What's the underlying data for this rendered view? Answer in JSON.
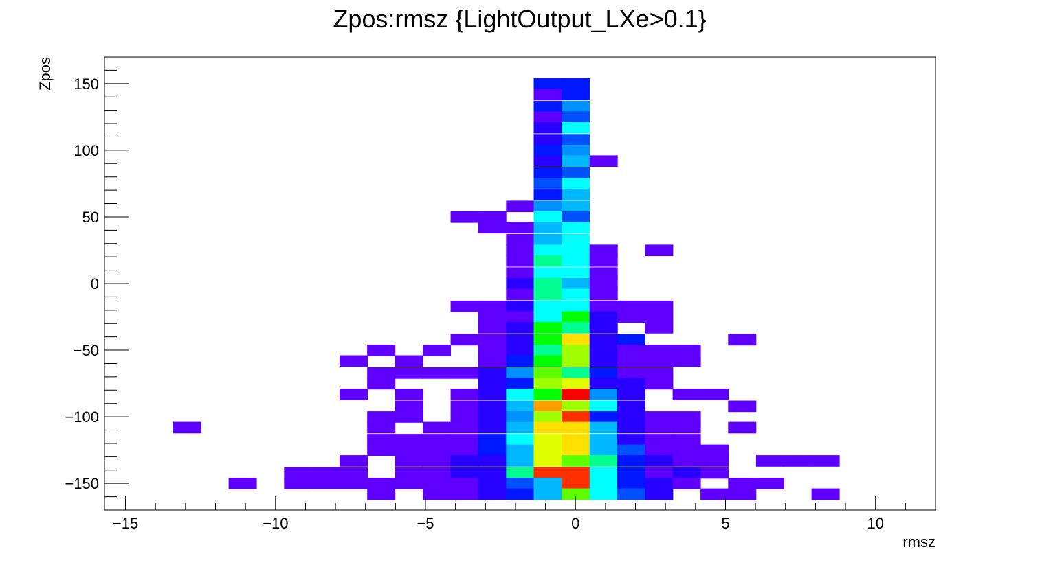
{
  "chart_data": {
    "type": "heatmap",
    "title": "Zpos:rmsz {LightOutput_LXe>0.1}",
    "xlabel": "rmsz",
    "ylabel": "Zpos",
    "xlim": [
      -15.7,
      12.0
    ],
    "ylim": [
      -170,
      170
    ],
    "x_ticks": [
      "−15",
      "−10",
      "−5",
      "0",
      "5",
      "10"
    ],
    "x_tick_values": [
      -15,
      -10,
      -5,
      0,
      5,
      10
    ],
    "y_ticks": [
      "150",
      "100",
      "50",
      "0",
      "−50",
      "−100",
      "−150"
    ],
    "y_tick_values": [
      150,
      100,
      50,
      0,
      -50,
      -100,
      -150
    ],
    "bin_width_x": 0.925,
    "bin_height_y": 8.3,
    "palette": [
      "#5f00ff",
      "#2800ff",
      "#0018ff",
      "#0050ff",
      "#0090ff",
      "#00b8ff",
      "#00ffff",
      "#00ff90",
      "#00ff00",
      "#60ff00",
      "#a0ff00",
      "#e0ff00",
      "#ffe000",
      "#ffa000",
      "#ff3000",
      "#ff0000"
    ],
    "cells": [
      [
        -0.93,
        150,
        2
      ],
      [
        0,
        150,
        2
      ],
      [
        -0.93,
        142,
        0
      ],
      [
        0,
        142,
        2
      ],
      [
        -0.93,
        133,
        2
      ],
      [
        0,
        133,
        4
      ],
      [
        -0.93,
        125,
        0
      ],
      [
        0,
        125,
        3
      ],
      [
        -0.93,
        117,
        1
      ],
      [
        0,
        117,
        6
      ],
      [
        -0.93,
        108,
        1
      ],
      [
        0,
        108,
        3
      ],
      [
        -0.93,
        100,
        2
      ],
      [
        0,
        100,
        4
      ],
      [
        -0.93,
        92,
        1
      ],
      [
        0,
        92,
        5
      ],
      [
        0.93,
        92,
        0
      ],
      [
        -0.93,
        83,
        2
      ],
      [
        0,
        83,
        3
      ],
      [
        -0.93,
        75,
        3
      ],
      [
        0,
        75,
        6
      ],
      [
        -0.93,
        67,
        2
      ],
      [
        0,
        67,
        5
      ],
      [
        -1.85,
        58,
        0
      ],
      [
        -0.93,
        58,
        4
      ],
      [
        0,
        58,
        5
      ],
      [
        -3.7,
        50,
        0
      ],
      [
        -2.78,
        50,
        0
      ],
      [
        -0.93,
        50,
        6
      ],
      [
        0,
        50,
        3
      ],
      [
        -2.78,
        42,
        0
      ],
      [
        -1.85,
        42,
        0
      ],
      [
        -0.93,
        42,
        5
      ],
      [
        0,
        42,
        6
      ],
      [
        -1.85,
        33,
        0
      ],
      [
        -0.93,
        33,
        5
      ],
      [
        0,
        33,
        6
      ],
      [
        -1.85,
        25,
        0
      ],
      [
        -0.93,
        25,
        6
      ],
      [
        0,
        25,
        6
      ],
      [
        0.93,
        25,
        0
      ],
      [
        2.78,
        25,
        0
      ],
      [
        -1.85,
        17,
        0
      ],
      [
        -0.93,
        17,
        7
      ],
      [
        0,
        17,
        6
      ],
      [
        0.93,
        17,
        0
      ],
      [
        -1.85,
        8,
        0
      ],
      [
        -0.93,
        8,
        6
      ],
      [
        0,
        8,
        6
      ],
      [
        0.93,
        8,
        0
      ],
      [
        -1.85,
        0,
        1
      ],
      [
        -0.93,
        0,
        7
      ],
      [
        0,
        0,
        5
      ],
      [
        0.93,
        0,
        0
      ],
      [
        -1.85,
        -8,
        0
      ],
      [
        -0.93,
        -8,
        7
      ],
      [
        0,
        -8,
        6
      ],
      [
        0.93,
        -8,
        0
      ],
      [
        -3.7,
        -17,
        0
      ],
      [
        -2.78,
        -17,
        0
      ],
      [
        -1.85,
        -17,
        1
      ],
      [
        -0.93,
        -17,
        6
      ],
      [
        0,
        -17,
        6
      ],
      [
        0.93,
        -17,
        0
      ],
      [
        1.85,
        -17,
        0
      ],
      [
        2.78,
        -17,
        0
      ],
      [
        -2.78,
        -25,
        0
      ],
      [
        -1.85,
        -25,
        0
      ],
      [
        -0.93,
        -25,
        6
      ],
      [
        0,
        -25,
        8
      ],
      [
        0.93,
        -25,
        1
      ],
      [
        1.85,
        -25,
        0
      ],
      [
        2.78,
        -25,
        0
      ],
      [
        -2.78,
        -33,
        0
      ],
      [
        -1.85,
        -33,
        1
      ],
      [
        -0.93,
        -33,
        8
      ],
      [
        0,
        -33,
        7
      ],
      [
        0.93,
        -33,
        1
      ],
      [
        2.78,
        -33,
        0
      ],
      [
        -3.7,
        -42,
        0
      ],
      [
        -2.78,
        -42,
        0
      ],
      [
        -1.85,
        -42,
        1
      ],
      [
        -0.93,
        -42,
        8
      ],
      [
        0,
        -42,
        12
      ],
      [
        0.93,
        -42,
        1
      ],
      [
        1.85,
        -42,
        2
      ],
      [
        5.55,
        -42,
        0
      ],
      [
        -6.48,
        -50,
        0
      ],
      [
        -4.63,
        -50,
        0
      ],
      [
        -2.78,
        -50,
        0
      ],
      [
        -1.85,
        -50,
        1
      ],
      [
        -0.93,
        -50,
        7
      ],
      [
        0,
        -50,
        10
      ],
      [
        0.93,
        -50,
        1
      ],
      [
        1.85,
        -50,
        0
      ],
      [
        2.78,
        -50,
        0
      ],
      [
        3.7,
        -50,
        0
      ],
      [
        -7.4,
        -58,
        0
      ],
      [
        -5.55,
        -58,
        0
      ],
      [
        -2.78,
        -58,
        0
      ],
      [
        -1.85,
        -58,
        2
      ],
      [
        -0.93,
        -58,
        8
      ],
      [
        0,
        -58,
        10
      ],
      [
        0.93,
        -58,
        1
      ],
      [
        1.85,
        -58,
        0
      ],
      [
        2.78,
        -58,
        0
      ],
      [
        3.7,
        -58,
        0
      ],
      [
        -6.48,
        -67,
        0
      ],
      [
        -5.55,
        -67,
        0
      ],
      [
        -4.63,
        -67,
        0
      ],
      [
        -3.7,
        -67,
        0
      ],
      [
        -2.78,
        -67,
        1
      ],
      [
        -1.85,
        -67,
        4
      ],
      [
        -0.93,
        -67,
        9
      ],
      [
        0,
        -67,
        7
      ],
      [
        0.93,
        -67,
        2
      ],
      [
        1.85,
        -67,
        0
      ],
      [
        2.78,
        -67,
        0
      ],
      [
        -6.48,
        -75,
        0
      ],
      [
        -2.78,
        -75,
        1
      ],
      [
        -1.85,
        -75,
        2
      ],
      [
        -0.93,
        -75,
        10
      ],
      [
        0,
        -75,
        11
      ],
      [
        0.93,
        -75,
        1
      ],
      [
        1.85,
        -75,
        1
      ],
      [
        2.78,
        -75,
        0
      ],
      [
        -7.4,
        -83,
        0
      ],
      [
        -5.55,
        -83,
        0
      ],
      [
        -3.7,
        -83,
        0
      ],
      [
        -2.78,
        -83,
        1
      ],
      [
        -1.85,
        -83,
        6
      ],
      [
        -0.93,
        -83,
        8
      ],
      [
        0,
        -83,
        15
      ],
      [
        0.93,
        -83,
        4
      ],
      [
        1.85,
        -83,
        1
      ],
      [
        3.7,
        -83,
        0
      ],
      [
        4.63,
        -83,
        0
      ],
      [
        -5.55,
        -92,
        0
      ],
      [
        -3.7,
        -92,
        0
      ],
      [
        -2.78,
        -92,
        1
      ],
      [
        -1.85,
        -92,
        5
      ],
      [
        -0.93,
        -92,
        13
      ],
      [
        0,
        -92,
        10
      ],
      [
        0.93,
        -92,
        6
      ],
      [
        1.85,
        -92,
        1
      ],
      [
        5.55,
        -92,
        0
      ],
      [
        -6.48,
        -100,
        0
      ],
      [
        -5.55,
        -100,
        0
      ],
      [
        -3.7,
        -100,
        0
      ],
      [
        -2.78,
        -100,
        1
      ],
      [
        -1.85,
        -100,
        4
      ],
      [
        -0.93,
        -100,
        10
      ],
      [
        0,
        -100,
        14
      ],
      [
        0.93,
        -100,
        2
      ],
      [
        1.85,
        -100,
        1
      ],
      [
        2.78,
        -100,
        0
      ],
      [
        3.7,
        -100,
        0
      ],
      [
        -12.95,
        -108,
        0
      ],
      [
        -6.48,
        -108,
        0
      ],
      [
        -4.63,
        -108,
        0
      ],
      [
        -3.7,
        -108,
        0
      ],
      [
        -2.78,
        -108,
        1
      ],
      [
        -1.85,
        -108,
        5
      ],
      [
        -0.93,
        -108,
        12
      ],
      [
        0,
        -108,
        12
      ],
      [
        0.93,
        -108,
        5
      ],
      [
        1.85,
        -108,
        1
      ],
      [
        2.78,
        -108,
        0
      ],
      [
        3.7,
        -108,
        0
      ],
      [
        5.55,
        -108,
        0
      ],
      [
        -6.48,
        -117,
        0
      ],
      [
        -5.55,
        -117,
        0
      ],
      [
        -4.63,
        -117,
        0
      ],
      [
        -3.7,
        -117,
        0
      ],
      [
        -2.78,
        -117,
        2
      ],
      [
        -1.85,
        -117,
        6
      ],
      [
        -0.93,
        -117,
        11
      ],
      [
        0,
        -117,
        12
      ],
      [
        0.93,
        -117,
        5
      ],
      [
        1.85,
        -117,
        1
      ],
      [
        2.78,
        -117,
        0
      ],
      [
        3.7,
        -117,
        0
      ],
      [
        -6.48,
        -125,
        0
      ],
      [
        -5.55,
        -125,
        0
      ],
      [
        -4.63,
        -125,
        0
      ],
      [
        -3.7,
        -125,
        0
      ],
      [
        -2.78,
        -125,
        2
      ],
      [
        -1.85,
        -125,
        5
      ],
      [
        -0.93,
        -125,
        11
      ],
      [
        0,
        -125,
        12
      ],
      [
        0.93,
        -125,
        5
      ],
      [
        1.85,
        -125,
        3
      ],
      [
        2.78,
        -125,
        0
      ],
      [
        3.7,
        -125,
        0
      ],
      [
        4.63,
        -125,
        0
      ],
      [
        -7.4,
        -133,
        0
      ],
      [
        -5.55,
        -133,
        0
      ],
      [
        -4.63,
        -133,
        0
      ],
      [
        -3.7,
        -133,
        1
      ],
      [
        -2.78,
        -133,
        1
      ],
      [
        -1.85,
        -133,
        5
      ],
      [
        -0.93,
        -133,
        11
      ],
      [
        0,
        -133,
        9
      ],
      [
        0.93,
        -133,
        7
      ],
      [
        1.85,
        -133,
        2
      ],
      [
        2.78,
        -133,
        1
      ],
      [
        3.7,
        -133,
        0
      ],
      [
        4.63,
        -133,
        0
      ],
      [
        6.48,
        -133,
        0
      ],
      [
        7.4,
        -133,
        0
      ],
      [
        8.33,
        -133,
        0
      ],
      [
        -9.25,
        -142,
        0
      ],
      [
        -8.33,
        -142,
        0
      ],
      [
        -7.4,
        -142,
        0
      ],
      [
        -5.55,
        -142,
        0
      ],
      [
        -4.63,
        -142,
        0
      ],
      [
        -3.7,
        -142,
        1
      ],
      [
        -2.78,
        -142,
        1
      ],
      [
        -1.85,
        -142,
        7
      ],
      [
        -0.93,
        -142,
        14
      ],
      [
        0,
        -142,
        14
      ],
      [
        0.93,
        -142,
        6
      ],
      [
        1.85,
        -142,
        2
      ],
      [
        2.78,
        -142,
        0
      ],
      [
        3.7,
        -142,
        1
      ],
      [
        4.63,
        -142,
        0
      ],
      [
        -11.1,
        -150,
        0
      ],
      [
        -9.25,
        -150,
        0
      ],
      [
        -8.33,
        -150,
        0
      ],
      [
        -7.4,
        -150,
        0
      ],
      [
        -6.48,
        -150,
        0
      ],
      [
        -5.55,
        -150,
        0
      ],
      [
        -4.63,
        -150,
        0
      ],
      [
        -3.7,
        -150,
        0
      ],
      [
        -2.78,
        -150,
        1
      ],
      [
        -1.85,
        -150,
        3
      ],
      [
        -0.93,
        -150,
        5
      ],
      [
        0,
        -150,
        14
      ],
      [
        0.93,
        -150,
        6
      ],
      [
        1.85,
        -150,
        2
      ],
      [
        2.78,
        -150,
        1
      ],
      [
        3.7,
        -150,
        0
      ],
      [
        5.55,
        -150,
        0
      ],
      [
        6.48,
        -150,
        0
      ],
      [
        -6.48,
        -158,
        0
      ],
      [
        -4.63,
        -158,
        0
      ],
      [
        -3.7,
        -158,
        0
      ],
      [
        -2.78,
        -158,
        1
      ],
      [
        -1.85,
        -158,
        2
      ],
      [
        -0.93,
        -158,
        5
      ],
      [
        0,
        -158,
        9
      ],
      [
        0.93,
        -158,
        6
      ],
      [
        1.85,
        -158,
        3
      ],
      [
        2.78,
        -158,
        1
      ],
      [
        4.63,
        -158,
        0
      ],
      [
        5.55,
        -158,
        0
      ],
      [
        8.33,
        -158,
        0
      ]
    ]
  }
}
